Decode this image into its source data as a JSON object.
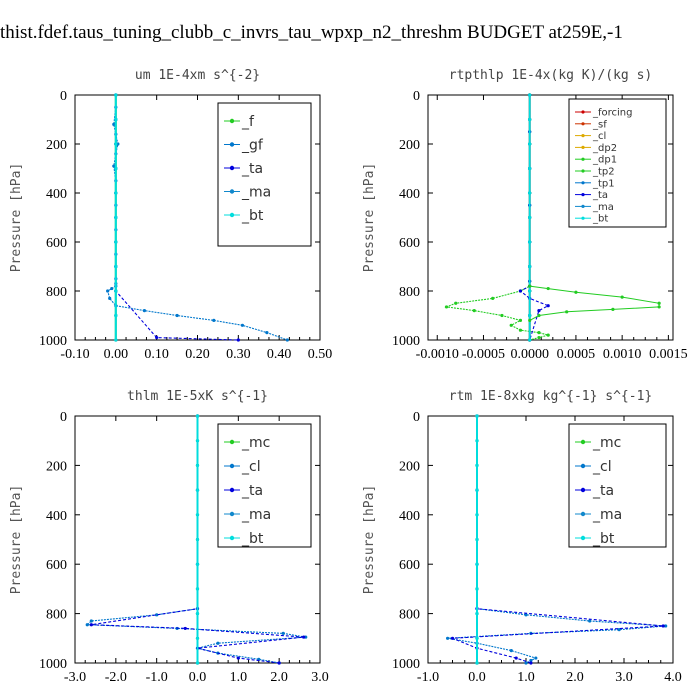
{
  "title": "thist.fdef.taus_tuning_clubb_c_invrs_tau_wpxp_n2_threshm  BUDGET at259E,-1",
  "colors": {
    "f": "#22cc22",
    "gf": "#0077cc",
    "ta": "#0000dd",
    "ma": "#1188cc",
    "bt": "#00dddd",
    "mc": "#22cc22",
    "cl": "#0077cc",
    "forcing": "#cc0000",
    "sf": "#cc3300",
    "dp2": "#ddaa00",
    "dp1": "#22cc22",
    "tp2": "#22cc22",
    "tp1": "#0077cc"
  },
  "chart_data": [
    {
      "type": "line",
      "title": "um   1E-4xm  s^{-2}",
      "ylabel": "Pressure  [hPa]",
      "xlim": [
        -0.1,
        0.5
      ],
      "ylim": [
        1000,
        0
      ],
      "xticks": [
        "-0.10",
        "0.00",
        "0.10",
        "0.20",
        "0.30",
        "0.40",
        "0.50"
      ],
      "yticks": [
        "0",
        "200",
        "400",
        "600",
        "800",
        "1000"
      ],
      "legend_position": "top-right",
      "series": [
        {
          "name": "_f",
          "key": "f",
          "x": [
            0,
            0,
            0,
            0,
            0,
            0,
            0,
            0,
            0,
            0,
            0
          ],
          "y": [
            0,
            100,
            200,
            300,
            400,
            500,
            600,
            700,
            800,
            900,
            1000
          ]
        },
        {
          "name": "_gf",
          "key": "gf",
          "x": [
            0.0,
            0.0,
            -0.005,
            0.0,
            0.005,
            0.0,
            -0.005,
            0.0,
            0.0,
            0.0,
            0.0,
            0.0,
            0.0,
            0.0,
            0.0,
            -0.01,
            -0.02,
            -0.015,
            0.0,
            0.07,
            0.15,
            0.24,
            0.31,
            0.37,
            0.42
          ],
          "y": [
            0,
            50,
            120,
            160,
            200,
            240,
            290,
            350,
            450,
            550,
            650,
            700,
            750,
            770,
            780,
            790,
            800,
            830,
            860,
            880,
            900,
            920,
            940,
            970,
            1000
          ]
        },
        {
          "name": "_ta",
          "key": "ta",
          "x": [
            0,
            0,
            0,
            0,
            0,
            0,
            0,
            0,
            0,
            0.1,
            0.3
          ],
          "y": [
            0,
            100,
            200,
            300,
            400,
            500,
            600,
            700,
            800,
            990,
            1000
          ]
        },
        {
          "name": "_ma",
          "key": "ma",
          "x": [
            0,
            0,
            0,
            0,
            0,
            0,
            0,
            0,
            0,
            0,
            0
          ],
          "y": [
            0,
            100,
            200,
            300,
            400,
            500,
            600,
            700,
            800,
            900,
            1000
          ]
        },
        {
          "name": "_bt",
          "key": "bt",
          "x": [
            0,
            0,
            0,
            0,
            0,
            0,
            0,
            0,
            0,
            0,
            0
          ],
          "y": [
            0,
            100,
            200,
            300,
            400,
            500,
            600,
            700,
            800,
            900,
            1000
          ]
        }
      ]
    },
    {
      "type": "line",
      "title": "rtpthlp   1E-4x(kg K)/(kg s)",
      "ylabel": "Pressure  [hPa]",
      "xlim": [
        -0.0011,
        0.00155
      ],
      "ylim": [
        1000,
        0
      ],
      "xticks": [
        "-0.0010",
        "-0.0005",
        "0.0000",
        "0.0005",
        "0.0010",
        "0.0015"
      ],
      "yticks": [
        "0",
        "200",
        "400",
        "600",
        "800",
        "1000"
      ],
      "legend_position": "top-right",
      "series": [
        {
          "name": "_forcing",
          "key": "forcing",
          "x": [
            0,
            0,
            0,
            0,
            0,
            0,
            0,
            0,
            0,
            0,
            0
          ],
          "y": [
            0,
            100,
            200,
            300,
            400,
            500,
            600,
            700,
            800,
            900,
            1000
          ]
        },
        {
          "name": "_sf",
          "key": "sf",
          "x": [
            0,
            0,
            0,
            0,
            0,
            0,
            0,
            0,
            0,
            0,
            0
          ],
          "y": [
            0,
            100,
            200,
            300,
            400,
            500,
            600,
            700,
            800,
            900,
            1000
          ]
        },
        {
          "name": "_cl",
          "key": "dp2",
          "x": [
            0,
            0,
            0,
            0,
            0,
            0,
            0,
            0,
            0,
            0,
            0
          ],
          "y": [
            0,
            100,
            200,
            300,
            400,
            500,
            600,
            700,
            800,
            900,
            1000
          ]
        },
        {
          "name": "_dp2",
          "key": "dp2",
          "x": [
            0,
            0,
            0,
            0,
            0,
            0,
            0,
            0,
            0,
            0,
            0
          ],
          "y": [
            0,
            100,
            200,
            300,
            400,
            500,
            600,
            700,
            800,
            900,
            1000
          ]
        },
        {
          "name": "_dp1",
          "key": "dp1",
          "x": [
            0,
            0,
            0,
            0,
            0,
            0,
            0,
            0,
            0,
            0,
            0
          ],
          "y": [
            0,
            100,
            200,
            300,
            400,
            500,
            600,
            700,
            800,
            900,
            1000
          ]
        },
        {
          "name": "_tp2",
          "key": "tp2",
          "x": [
            0,
            0,
            0,
            0,
            0,
            0,
            0.0,
            0.0,
            -0.0001,
            -0.0004,
            -0.0008,
            -0.0009,
            -0.0006,
            -0.0003,
            -0.0001,
            -0.0002,
            -0.0001,
            0.0001,
            0.0002,
            0.0001,
            0.0
          ],
          "y": [
            0,
            150,
            300,
            450,
            600,
            700,
            760,
            780,
            800,
            830,
            850,
            865,
            880,
            900,
            920,
            940,
            960,
            970,
            980,
            990,
            1000
          ]
        },
        {
          "name": "_tp1",
          "key": "tp1",
          "x": [
            0,
            0,
            0,
            0,
            0,
            0,
            0,
            0,
            0,
            0,
            0
          ],
          "y": [
            0,
            100,
            200,
            300,
            400,
            500,
            600,
            700,
            800,
            900,
            1000
          ]
        },
        {
          "name": "_ta",
          "key": "ta",
          "x": [
            0,
            0,
            0,
            0,
            0,
            0,
            0,
            0.0,
            -0.0001,
            0.0,
            0.0002,
            0.0001,
            0.0
          ],
          "y": [
            0,
            150,
            300,
            450,
            600,
            700,
            760,
            780,
            800,
            830,
            860,
            880,
            1000
          ]
        },
        {
          "name": "_ma",
          "key": "ma",
          "x": [
            0,
            0,
            0,
            0,
            0,
            0,
            0,
            0,
            0,
            0,
            0
          ],
          "y": [
            0,
            100,
            200,
            300,
            400,
            500,
            600,
            700,
            800,
            900,
            1000
          ]
        },
        {
          "name": "_bt",
          "key": "bt",
          "x": [
            0,
            0,
            0,
            0,
            0,
            0,
            0,
            0,
            0,
            0,
            0
          ],
          "y": [
            0,
            100,
            200,
            300,
            400,
            500,
            600,
            700,
            800,
            900,
            1000
          ]
        }
      ],
      "extra_green": {
        "x": [
          0,
          0.0002,
          0.0005,
          0.001,
          0.0014,
          0.0014,
          0.0009,
          0.0004,
          0.0001,
          0.0
        ],
        "y": [
          780,
          790,
          805,
          825,
          850,
          865,
          875,
          885,
          900,
          920
        ]
      }
    },
    {
      "type": "line",
      "title": "thlm   1E-5xK  s^{-1}",
      "ylabel": "Pressure  [hPa]",
      "xlim": [
        -3.0,
        3.0
      ],
      "ylim": [
        1000,
        0
      ],
      "xticks": [
        "-3.0",
        "-2.0",
        "-1.0",
        "0.0",
        "1.0",
        "2.0",
        "3.0"
      ],
      "yticks": [
        "0",
        "200",
        "400",
        "600",
        "800",
        "1000"
      ],
      "legend_position": "top-right",
      "series": [
        {
          "name": "_mc",
          "key": "mc",
          "x": [
            0,
            0,
            0,
            0,
            0,
            0,
            0,
            0,
            0,
            0,
            0
          ],
          "y": [
            0,
            100,
            200,
            300,
            400,
            500,
            600,
            700,
            800,
            900,
            1000
          ]
        },
        {
          "name": "_cl",
          "key": "cl",
          "x": [
            0,
            0,
            0,
            0,
            -1.0,
            -2.6,
            -2.7,
            -0.5,
            2.1,
            2.65,
            0.5,
            0.0,
            0.5,
            1.5,
            2.0
          ],
          "y": [
            0,
            300,
            600,
            780,
            805,
            830,
            845,
            860,
            880,
            895,
            920,
            940,
            960,
            985,
            1000
          ]
        },
        {
          "name": "_ta",
          "key": "ta",
          "x": [
            0,
            0,
            0,
            0,
            -2.6,
            -0.3,
            2.6,
            0.0,
            1.0,
            2.0
          ],
          "y": [
            0,
            300,
            600,
            780,
            845,
            860,
            895,
            940,
            980,
            1000
          ]
        },
        {
          "name": "_ma",
          "key": "ma",
          "x": [
            0,
            0,
            0,
            0,
            0,
            0,
            0,
            0,
            0,
            0,
            0
          ],
          "y": [
            0,
            100,
            200,
            300,
            400,
            500,
            600,
            700,
            800,
            900,
            1000
          ]
        },
        {
          "name": "_bt",
          "key": "bt",
          "x": [
            0,
            0,
            0,
            0,
            0,
            0,
            0,
            0,
            0,
            0,
            0
          ],
          "y": [
            0,
            100,
            200,
            300,
            400,
            500,
            600,
            700,
            800,
            900,
            1000
          ]
        }
      ]
    },
    {
      "type": "line",
      "title": "rtm   1E-8xkg  kg^{-1}  s^{-1}",
      "ylabel": "Pressure  [hPa]",
      "xlim": [
        -1.0,
        4.0
      ],
      "ylim": [
        1000,
        0
      ],
      "xticks": [
        "-1.0",
        "0.0",
        "1.0",
        "2.0",
        "3.0",
        "4.0"
      ],
      "yticks": [
        "0",
        "200",
        "400",
        "600",
        "800",
        "1000"
      ],
      "legend_position": "top-right",
      "series": [
        {
          "name": "_mc",
          "key": "mc",
          "x": [
            0,
            0,
            0,
            0,
            0,
            0,
            0,
            0,
            0,
            0,
            0
          ],
          "y": [
            0,
            100,
            200,
            300,
            400,
            500,
            600,
            700,
            800,
            900,
            1000
          ]
        },
        {
          "name": "_cl",
          "key": "cl",
          "x": [
            0,
            0,
            0,
            0,
            1.0,
            2.3,
            3.85,
            2.9,
            1.1,
            -0.6,
            0.0,
            0.7,
            1.2,
            1.1,
            1.0
          ],
          "y": [
            0,
            300,
            600,
            780,
            805,
            830,
            850,
            865,
            880,
            900,
            920,
            950,
            980,
            990,
            1000
          ]
        },
        {
          "name": "_ta",
          "key": "ta",
          "x": [
            0,
            0,
            0,
            0,
            3.8,
            -0.5,
            0.0,
            0.8,
            1.1
          ],
          "y": [
            0,
            300,
            600,
            780,
            850,
            900,
            940,
            980,
            1000
          ]
        },
        {
          "name": "_ma",
          "key": "ma",
          "x": [
            0,
            0,
            0,
            0,
            0,
            0,
            0,
            0,
            0,
            0,
            0
          ],
          "y": [
            0,
            100,
            200,
            300,
            400,
            500,
            600,
            700,
            800,
            900,
            1000
          ]
        },
        {
          "name": "_bt",
          "key": "bt",
          "x": [
            0,
            0,
            0,
            0,
            0,
            0,
            0,
            0,
            0,
            0,
            0
          ],
          "y": [
            0,
            100,
            200,
            300,
            400,
            500,
            600,
            700,
            800,
            900,
            1000
          ]
        }
      ]
    }
  ]
}
